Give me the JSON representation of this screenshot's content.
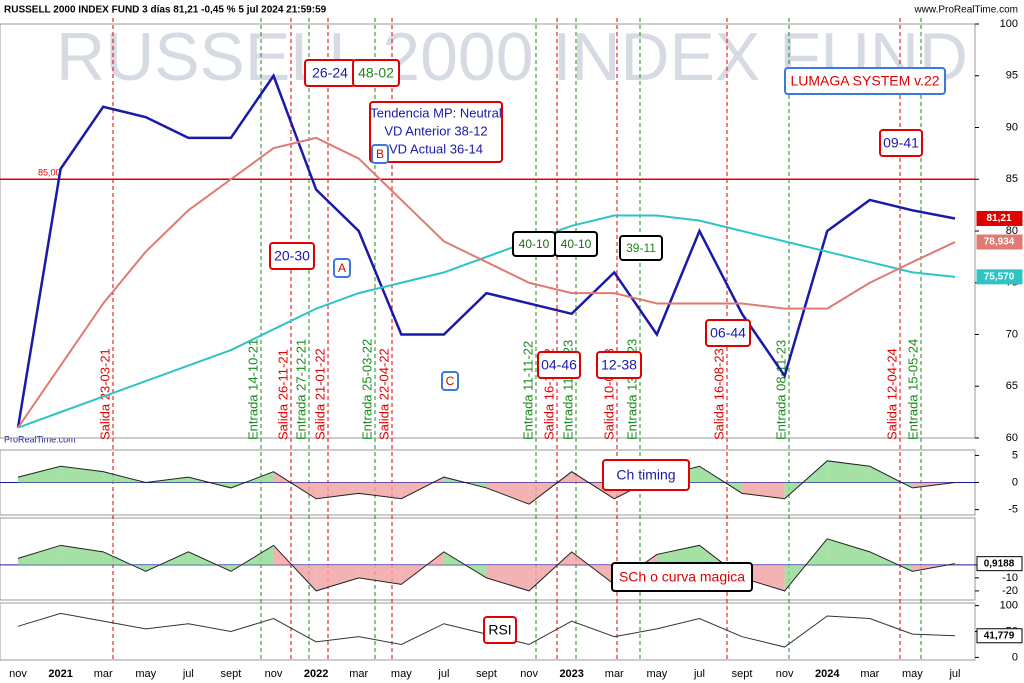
{
  "header": {
    "title": "RUSSELL 2000 INDEX FUND 3 días 81,21 -0,45 % 5 jul 2024 21:59:59",
    "site": "www.ProRealTime.com",
    "watermark": "RUSSELL 2000 INDEX FUND",
    "footer": "ProRealTime.com"
  },
  "chart_data": [
    {
      "type": "line",
      "categories": [
        "nov",
        "2021",
        "mar",
        "may",
        "jul",
        "sept",
        "nov",
        "2022",
        "mar",
        "may",
        "jul",
        "sept",
        "nov",
        "2023",
        "mar",
        "may",
        "jul",
        "sept",
        "nov",
        "2024",
        "mar",
        "may",
        "jul"
      ],
      "series": [
        {
          "color": "#1a1aa8",
          "values": [
            61,
            86,
            92,
            91,
            89,
            89,
            95,
            84,
            80,
            70,
            70,
            74,
            73,
            72,
            76,
            70,
            80,
            72,
            66,
            80,
            83,
            82,
            81.21
          ]
        },
        {
          "color": "#2ec4c4",
          "values": [
            61,
            62.5,
            64,
            65.5,
            67,
            68.5,
            70.5,
            72.5,
            74,
            75,
            76,
            77.5,
            79,
            80.5,
            81.5,
            81.5,
            81,
            80,
            79,
            78,
            77,
            76,
            75.57
          ]
        },
        {
          "color": "#e07a72",
          "values": [
            61,
            67,
            73,
            78,
            82,
            85,
            88,
            89,
            87,
            83,
            79,
            77,
            75,
            74,
            74,
            73,
            73,
            73,
            72.5,
            72.5,
            75,
            77,
            78.934
          ]
        }
      ],
      "ylim": [
        60,
        100
      ],
      "yticks": [
        60,
        65,
        70,
        75,
        80,
        85,
        90,
        95,
        100
      ],
      "hline": {
        "value": 85,
        "label": "85,00",
        "color": "#e00000"
      },
      "marker_labels": [
        {
          "value": 81.21,
          "label": "81,21",
          "color": "#e00000"
        },
        {
          "value": 78.934,
          "label": "78,934",
          "color": "#e07a72"
        },
        {
          "value": 75.57,
          "label": "75,570",
          "color": "#2ec4c4"
        }
      ]
    },
    {
      "type": "area",
      "categories": [
        "nov",
        "2021",
        "mar",
        "may",
        "jul",
        "sept",
        "nov",
        "2022",
        "mar",
        "may",
        "jul",
        "sept",
        "nov",
        "2023",
        "mar",
        "may",
        "jul",
        "sept",
        "nov",
        "2024",
        "mar",
        "may",
        "jul"
      ],
      "values": [
        1,
        3,
        2,
        0,
        1,
        -1,
        2,
        -3,
        -2,
        -3,
        1,
        -1,
        -4,
        2,
        -3,
        1,
        3,
        -2,
        -3,
        4,
        3,
        -1,
        0
      ],
      "ylim": [
        -6,
        6
      ],
      "yticks": [
        -5,
        0,
        5
      ]
    },
    {
      "type": "area",
      "categories": [
        "nov",
        "2021",
        "mar",
        "may",
        "jul",
        "sept",
        "nov",
        "2022",
        "mar",
        "may",
        "jul",
        "sept",
        "nov",
        "2023",
        "mar",
        "may",
        "jul",
        "sept",
        "nov",
        "2024",
        "mar",
        "may",
        "jul"
      ],
      "values": [
        5,
        15,
        10,
        -5,
        10,
        -5,
        15,
        -20,
        -10,
        -15,
        10,
        -10,
        -20,
        10,
        -15,
        8,
        15,
        -10,
        -20,
        20,
        10,
        -5,
        0.9188
      ],
      "ylim": [
        -27,
        36
      ],
      "yticks": [
        -20,
        -10,
        0
      ],
      "marker_labels": [
        {
          "value": 0.9188,
          "label": "0,9188",
          "color": "#000000"
        }
      ]
    },
    {
      "type": "line",
      "categories": [
        "nov",
        "2021",
        "mar",
        "may",
        "jul",
        "sept",
        "nov",
        "2022",
        "mar",
        "may",
        "jul",
        "sept",
        "nov",
        "2023",
        "mar",
        "may",
        "jul",
        "sept",
        "nov",
        "2024",
        "mar",
        "may",
        "jul"
      ],
      "values": [
        60,
        85,
        70,
        55,
        65,
        50,
        75,
        30,
        40,
        25,
        65,
        45,
        25,
        70,
        40,
        55,
        75,
        40,
        20,
        80,
        75,
        45,
        41.779
      ],
      "ylim": [
        -5,
        105
      ],
      "yticks": [
        0,
        50,
        100
      ],
      "marker_labels": [
        {
          "value": 41.779,
          "label": "41,779",
          "color": "#000000"
        }
      ]
    }
  ],
  "signals": [
    {
      "text": "Salida 23-03-21",
      "color": "#e00000"
    },
    {
      "text": "Entrada 14-10-21",
      "color": "#1a8a1a"
    },
    {
      "text": "Salida 26-11-21",
      "color": "#e00000"
    },
    {
      "text": "Entrada 27-12-21",
      "color": "#1a8a1a"
    },
    {
      "text": "Salida 21-01-22",
      "color": "#e00000"
    },
    {
      "text": "Entrada 25-03-22",
      "color": "#1a8a1a"
    },
    {
      "text": "Salida 22-04-22",
      "color": "#e00000"
    },
    {
      "text": "Entrada 11-11-22",
      "color": "#1a8a1a"
    },
    {
      "text": "Salida 16-12-22",
      "color": "#e00000"
    },
    {
      "text": "Entrada 11-01-23",
      "color": "#1a8a1a"
    },
    {
      "text": "Salida 10-03-23",
      "color": "#e00000"
    },
    {
      "text": "Entrada 13-04-23",
      "color": "#1a8a1a"
    },
    {
      "text": "Salida 16-08-23",
      "color": "#e00000"
    },
    {
      "text": "Entrada 08-11-23",
      "color": "#1a8a1a"
    },
    {
      "text": "Salida 12-04-24",
      "color": "#e00000"
    },
    {
      "text": "Entrada 15-05-24",
      "color": "#1a8a1a"
    }
  ],
  "annotations": [
    {
      "text": "26-24",
      "color": "#1a1aa8",
      "border": "#e00000"
    },
    {
      "text": "48-02",
      "color": "#1a8a1a",
      "border": "#e00000"
    },
    {
      "lines": [
        "Tendencia MP: Neutral",
        "VD Anterior 38-12",
        "VD Actual 36-14"
      ],
      "color": "#1a1aa8",
      "border": "#e00000"
    },
    {
      "text": "LUMAGA SYSTEM v.22",
      "color": "#e00000",
      "border": "#3a7ae0"
    },
    {
      "text": "09-41",
      "color": "#1a1aa8",
      "border": "#e00000"
    },
    {
      "text": "20-30",
      "color": "#1a1aa8",
      "border": "#e00000"
    },
    {
      "text": "40-10",
      "color": "#1a6a1a",
      "border": "#000000"
    },
    {
      "text": "40-10",
      "color": "#1a6a1a",
      "border": "#000000"
    },
    {
      "text": "39-11",
      "color": "#1a8a1a",
      "border": "#000000"
    },
    {
      "text": "04-46",
      "color": "#1a1aa8",
      "border": "#e00000"
    },
    {
      "text": "12-38",
      "color": "#1a1aa8",
      "border": "#e00000"
    },
    {
      "text": "06-44",
      "color": "#1a1aa8",
      "border": "#e00000"
    },
    {
      "text": "A",
      "color": "#e00000",
      "border": "#3a7ae0"
    },
    {
      "text": "B",
      "color": "#e00000",
      "border": "#3a7ae0"
    },
    {
      "text": "C",
      "color": "#e00000",
      "border": "#3a7ae0"
    },
    {
      "text": "Ch timing",
      "color": "#1a1aa8",
      "border": "#e00000"
    },
    {
      "text": "SCh o curva magica",
      "color": "#e00000",
      "border": "#000000"
    },
    {
      "text": "RSI",
      "color": "#000000",
      "border": "#e00000"
    }
  ]
}
